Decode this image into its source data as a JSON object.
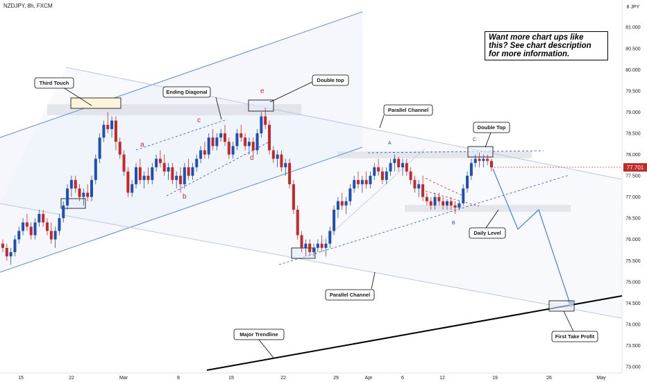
{
  "header": {
    "title": "NZDJPY, 8h, FXCM"
  },
  "note": {
    "text": "Want more chart ups like this? See chart description for more information."
  },
  "chart_data": {
    "type": "candlestick",
    "symbol": "NZDJPY",
    "timeframe": "8h",
    "exchange": "FXCM",
    "currency": "JPY",
    "ylim": [
      72.9,
      82.0
    ],
    "y_ticks": [
      "73.000",
      "73.500",
      "74.000",
      "74.500",
      "75.000",
      "75.500",
      "76.000",
      "76.500",
      "77.000",
      "77.500",
      "78.000",
      "78.500",
      "79.000",
      "79.500",
      "80.000",
      "80.500",
      "81.000"
    ],
    "x_ticks": [
      {
        "label": "15",
        "x": 30
      },
      {
        "label": "22",
        "x": 103
      },
      {
        "label": "Mar",
        "x": 178
      },
      {
        "label": "8",
        "x": 257
      },
      {
        "label": "15",
        "x": 333
      },
      {
        "label": "22",
        "x": 408
      },
      {
        "label": "29",
        "x": 484
      },
      {
        "label": "Apr",
        "x": 531
      },
      {
        "label": "6",
        "x": 580
      },
      {
        "label": "12",
        "x": 637
      },
      {
        "label": "19",
        "x": 713
      },
      {
        "label": "26",
        "x": 791
      },
      {
        "label": "May",
        "x": 866
      }
    ],
    "last_price": "77.701",
    "colors": {
      "up": "#1e50b4",
      "down": "#c62828"
    },
    "candles": [
      [
        75.9,
        76.0,
        75.7,
        75.8
      ],
      [
        75.8,
        75.9,
        75.5,
        75.6
      ],
      [
        75.6,
        75.8,
        75.4,
        75.7
      ],
      [
        75.7,
        76.1,
        75.6,
        76.0
      ],
      [
        76.0,
        76.3,
        75.9,
        76.2
      ],
      [
        76.2,
        76.5,
        76.1,
        76.4
      ],
      [
        76.4,
        76.6,
        76.2,
        76.3
      ],
      [
        76.3,
        76.4,
        76.0,
        76.1
      ],
      [
        76.1,
        76.5,
        76.0,
        76.4
      ],
      [
        76.4,
        76.7,
        76.3,
        76.6
      ],
      [
        76.6,
        76.7,
        76.3,
        76.4
      ],
      [
        76.4,
        76.5,
        76.1,
        76.2
      ],
      [
        76.2,
        76.4,
        75.9,
        76.0
      ],
      [
        76.0,
        76.3,
        75.8,
        76.2
      ],
      [
        76.2,
        76.6,
        76.1,
        76.5
      ],
      [
        76.5,
        76.9,
        76.4,
        76.8
      ],
      [
        76.8,
        77.3,
        76.7,
        77.2
      ],
      [
        77.2,
        77.5,
        77.0,
        77.4
      ],
      [
        77.4,
        77.5,
        77.1,
        77.2
      ],
      [
        77.2,
        77.3,
        76.9,
        77.0
      ],
      [
        77.0,
        77.2,
        76.8,
        77.1
      ],
      [
        77.1,
        77.3,
        76.9,
        77.0
      ],
      [
        77.0,
        77.5,
        76.9,
        77.4
      ],
      [
        77.4,
        78.0,
        77.3,
        77.9
      ],
      [
        77.9,
        78.5,
        77.8,
        78.4
      ],
      [
        78.4,
        78.8,
        78.3,
        78.7
      ],
      [
        78.7,
        79.0,
        78.5,
        78.6
      ],
      [
        78.6,
        78.9,
        78.4,
        78.8
      ],
      [
        78.8,
        78.9,
        78.1,
        78.3
      ],
      [
        78.3,
        78.4,
        77.9,
        78.0
      ],
      [
        78.0,
        78.1,
        77.5,
        77.6
      ],
      [
        77.6,
        77.7,
        77.0,
        77.1
      ],
      [
        77.1,
        77.4,
        77.0,
        77.3
      ],
      [
        77.3,
        77.8,
        77.2,
        77.7
      ],
      [
        77.7,
        77.9,
        77.3,
        77.4
      ],
      [
        77.4,
        77.6,
        77.2,
        77.5
      ],
      [
        77.5,
        77.7,
        77.3,
        77.4
      ],
      [
        77.4,
        77.8,
        77.3,
        77.7
      ],
      [
        77.7,
        78.0,
        77.6,
        77.9
      ],
      [
        77.9,
        78.1,
        77.7,
        77.8
      ],
      [
        77.8,
        78.0,
        77.5,
        77.6
      ],
      [
        77.6,
        77.8,
        77.4,
        77.7
      ],
      [
        77.7,
        77.8,
        77.3,
        77.4
      ],
      [
        77.4,
        77.6,
        77.2,
        77.5
      ],
      [
        77.5,
        77.7,
        77.1,
        77.3
      ],
      [
        77.3,
        77.8,
        77.2,
        77.7
      ],
      [
        77.7,
        77.9,
        77.4,
        77.5
      ],
      [
        77.5,
        77.8,
        77.4,
        77.7
      ],
      [
        77.7,
        78.0,
        77.6,
        77.9
      ],
      [
        77.9,
        78.2,
        77.8,
        78.1
      ],
      [
        78.1,
        78.3,
        77.9,
        78.0
      ],
      [
        78.0,
        78.5,
        77.9,
        78.4
      ],
      [
        78.4,
        78.6,
        78.1,
        78.2
      ],
      [
        78.2,
        78.5,
        78.1,
        78.4
      ],
      [
        78.4,
        78.6,
        78.3,
        78.5
      ],
      [
        78.5,
        78.7,
        78.2,
        78.3
      ],
      [
        78.3,
        78.4,
        77.9,
        78.0
      ],
      [
        78.0,
        78.3,
        77.9,
        78.2
      ],
      [
        78.2,
        78.6,
        78.1,
        78.5
      ],
      [
        78.5,
        78.7,
        78.3,
        78.4
      ],
      [
        78.4,
        78.5,
        78.1,
        78.2
      ],
      [
        78.2,
        78.4,
        78.0,
        78.3
      ],
      [
        78.3,
        78.4,
        78.0,
        78.1
      ],
      [
        78.1,
        78.6,
        78.0,
        78.5
      ],
      [
        78.5,
        79.0,
        78.4,
        78.9
      ],
      [
        78.9,
        79.1,
        78.6,
        78.7
      ],
      [
        78.7,
        78.8,
        78.0,
        78.1
      ],
      [
        78.1,
        78.2,
        77.8,
        77.9
      ],
      [
        77.9,
        78.1,
        77.7,
        78.0
      ],
      [
        78.0,
        78.1,
        77.6,
        77.7
      ],
      [
        77.7,
        77.9,
        77.5,
        77.8
      ],
      [
        77.8,
        77.9,
        77.2,
        77.3
      ],
      [
        77.3,
        77.4,
        76.6,
        76.7
      ],
      [
        76.7,
        76.8,
        76.0,
        76.1
      ],
      [
        76.1,
        76.2,
        75.7,
        75.8
      ],
      [
        75.8,
        76.0,
        75.6,
        75.9
      ],
      [
        75.9,
        76.0,
        75.6,
        75.7
      ],
      [
        75.7,
        75.9,
        75.6,
        75.8
      ],
      [
        75.8,
        76.0,
        75.7,
        75.9
      ],
      [
        75.9,
        76.1,
        75.7,
        75.8
      ],
      [
        75.8,
        76.0,
        75.6,
        75.9
      ],
      [
        75.9,
        76.3,
        75.8,
        76.2
      ],
      [
        76.2,
        76.8,
        76.1,
        76.7
      ],
      [
        76.7,
        77.0,
        76.5,
        76.9
      ],
      [
        76.9,
        77.1,
        76.7,
        76.8
      ],
      [
        76.8,
        77.0,
        76.6,
        76.9
      ],
      [
        76.9,
        77.3,
        76.8,
        77.2
      ],
      [
        77.2,
        77.5,
        77.1,
        77.4
      ],
      [
        77.4,
        77.6,
        77.2,
        77.3
      ],
      [
        77.3,
        77.5,
        77.1,
        77.4
      ],
      [
        77.4,
        77.6,
        77.2,
        77.3
      ],
      [
        77.3,
        77.6,
        77.2,
        77.5
      ],
      [
        77.5,
        77.8,
        77.4,
        77.7
      ],
      [
        77.7,
        77.9,
        77.5,
        77.6
      ],
      [
        77.6,
        77.7,
        77.3,
        77.4
      ],
      [
        77.4,
        77.7,
        77.3,
        77.6
      ],
      [
        77.6,
        77.9,
        77.5,
        77.8
      ],
      [
        77.8,
        78.0,
        77.6,
        77.9
      ],
      [
        77.9,
        77.95,
        77.6,
        77.7
      ],
      [
        77.7,
        77.9,
        77.5,
        77.8
      ],
      [
        77.8,
        77.9,
        77.5,
        77.6
      ],
      [
        77.6,
        77.7,
        77.3,
        77.4
      ],
      [
        77.4,
        77.5,
        77.1,
        77.2
      ],
      [
        77.2,
        77.4,
        77.0,
        77.3
      ],
      [
        77.3,
        77.5,
        76.9,
        77.0
      ],
      [
        77.0,
        77.1,
        76.8,
        76.9
      ],
      [
        76.9,
        77.0,
        76.7,
        76.8
      ],
      [
        76.8,
        77.1,
        76.7,
        77.0
      ],
      [
        77.0,
        77.1,
        76.8,
        76.9
      ],
      [
        76.9,
        77.0,
        76.7,
        76.8
      ],
      [
        76.8,
        76.95,
        76.7,
        76.9
      ],
      [
        76.9,
        77.0,
        76.7,
        76.8
      ],
      [
        76.8,
        76.9,
        76.6,
        76.75
      ],
      [
        76.75,
        76.9,
        76.7,
        76.85
      ],
      [
        76.85,
        77.3,
        76.8,
        77.2
      ],
      [
        77.2,
        77.6,
        77.1,
        77.5
      ],
      [
        77.5,
        77.9,
        77.4,
        77.8
      ],
      [
        77.8,
        78.0,
        77.7,
        77.9
      ],
      [
        77.9,
        78.05,
        77.7,
        77.85
      ],
      [
        77.85,
        78.0,
        77.7,
        77.9
      ],
      [
        77.9,
        78.0,
        77.75,
        77.85
      ],
      [
        77.85,
        77.9,
        77.6,
        77.7
      ]
    ],
    "annotations": [
      {
        "kind": "label",
        "text": "Third Touch"
      },
      {
        "kind": "label",
        "text": "Ending Diagonal"
      },
      {
        "kind": "label",
        "text": "Double top"
      },
      {
        "kind": "label",
        "text": "Parallel Channel"
      },
      {
        "kind": "label",
        "text": "Double Top"
      },
      {
        "kind": "label",
        "text": "Daily Level"
      },
      {
        "kind": "label",
        "text": "Parallel Channel"
      },
      {
        "kind": "label",
        "text": "Major Trendline"
      },
      {
        "kind": "label",
        "text": "First Take Profit"
      }
    ],
    "waves": [
      "a",
      "b",
      "c",
      "d",
      "e",
      "A",
      "B",
      "C"
    ]
  }
}
